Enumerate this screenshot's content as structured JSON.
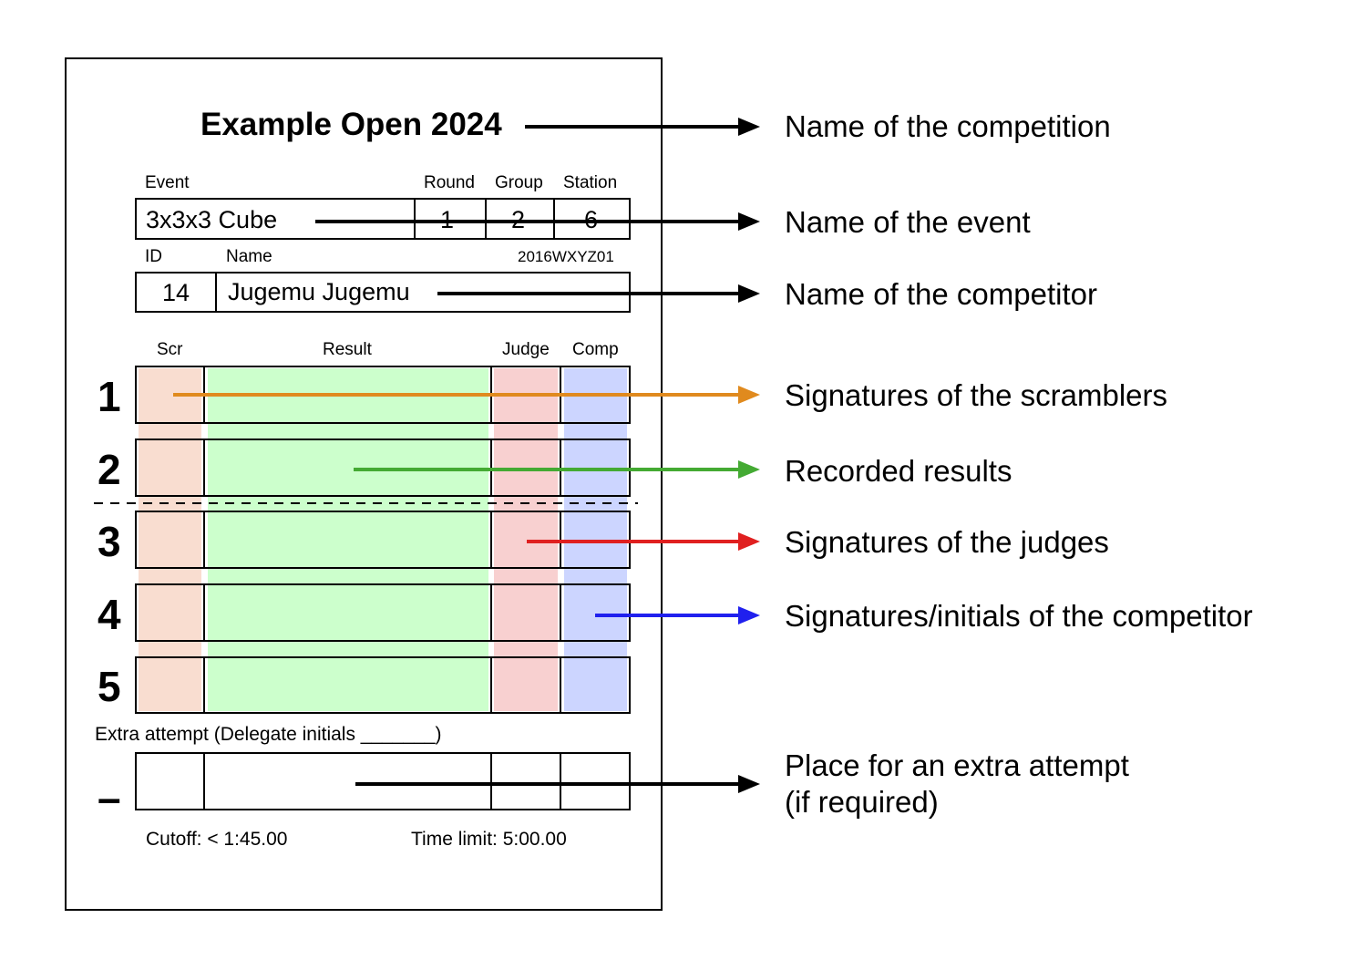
{
  "sheet": {
    "title": "Example Open 2024",
    "event_label": "Event",
    "round_label": "Round",
    "group_label": "Group",
    "station_label": "Station",
    "event_value": "3x3x3 Cube",
    "round_value": "1",
    "group_value": "2",
    "station_value": "6",
    "id_label": "ID",
    "name_label": "Name",
    "wca_id": "2016WXYZ01",
    "id_value": "14",
    "name_value": "Jugemu Jugemu",
    "col_scr": "Scr",
    "col_result": "Result",
    "col_judge": "Judge",
    "col_comp": "Comp",
    "attempts": [
      "1",
      "2",
      "3",
      "4",
      "5"
    ],
    "extra_label": "Extra attempt (Delegate initials _______)",
    "extra_mark": "–",
    "cutoff": "Cutoff: < 1:45.00",
    "time_limit": "Time limit: 5:00.00"
  },
  "colors": {
    "scrambler": "#f9ddd0",
    "result": "#ccffcc",
    "judge": "#f8d0d0",
    "competitor": "#ccd5ff",
    "arrow_black": "#000000",
    "arrow_orange": "#e08a1e",
    "arrow_green": "#44aa33",
    "arrow_red": "#e02020",
    "arrow_blue": "#2020ee"
  },
  "callouts": {
    "competition": "Name of the competition",
    "event": "Name of the event",
    "competitor": "Name of the competitor",
    "scramblers": "Signatures of the scramblers",
    "results": "Recorded results",
    "judges": "Signatures of the judges",
    "competitor_sign": "Signatures/initials of the competitor",
    "extra_line1": "Place for an extra attempt",
    "extra_line2": "(if required)"
  }
}
